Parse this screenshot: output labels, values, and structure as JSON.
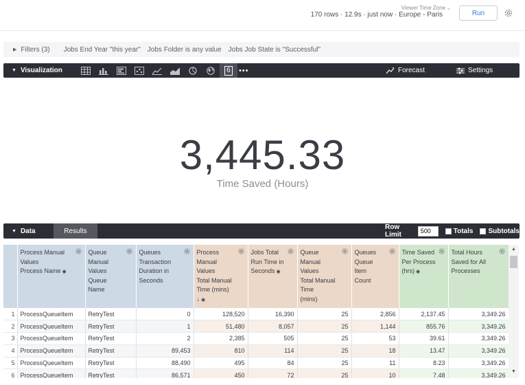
{
  "header": {
    "timezone_label": "Viewer Time Zone",
    "status": "170 rows · 12.9s · just now · Europe - Paris",
    "run_label": "Run"
  },
  "filters": {
    "label": "Filters (3)",
    "items": [
      "Jobs End Year \"this year\"",
      "Jobs Folder is any value",
      "Jobs Job State is \"Successful\""
    ]
  },
  "visualization": {
    "title": "Visualization",
    "icons": [
      "table-icon",
      "bar-chart-icon",
      "column-chart-icon",
      "scatter-icon",
      "line-icon",
      "area-icon",
      "pie-icon",
      "map-icon",
      "single-value-icon"
    ],
    "active_icon_text": "6",
    "more": "•••",
    "forecast_label": "Forecast",
    "settings_label": "Settings"
  },
  "single_value": {
    "value": "3,445.33",
    "label": "Time Saved (Hours)"
  },
  "data_panel": {
    "data_tab": "Data",
    "results_tab": "Results",
    "row_limit_label": "Row Limit",
    "row_limit_value": "500",
    "totals_label": "Totals",
    "subtotals_label": "Subtotals"
  },
  "table": {
    "columns": [
      {
        "lines": [
          "Process Manual",
          "Values",
          "Process Name"
        ],
        "type": "dim",
        "hidden_icon": true
      },
      {
        "lines": [
          "Queue",
          "Manual",
          "Values",
          "Queue",
          "Name"
        ],
        "type": "dim"
      },
      {
        "lines": [
          "Queues",
          "Transaction",
          "Duration in",
          "Seconds"
        ],
        "type": "dim"
      },
      {
        "lines": [
          "Process",
          "Manual",
          "Values",
          "Total Manual",
          "Time (mins)",
          "↓"
        ],
        "type": "meas",
        "hidden_icon": true
      },
      {
        "lines": [
          "Jobs Total",
          "Run Time in",
          "Seconds"
        ],
        "type": "meas",
        "hidden_icon": true
      },
      {
        "lines": [
          "Queue",
          "Manual",
          "Values",
          "Total Manual",
          "Time",
          "(mins)"
        ],
        "type": "meas"
      },
      {
        "lines": [
          "Queues",
          "Queue",
          "Item",
          "Count"
        ],
        "type": "meas"
      },
      {
        "lines": [
          "Time Saved",
          "Per Process",
          "(hrs)"
        ],
        "type": "calc",
        "hidden_icon": true
      },
      {
        "lines": [
          "Total Hours",
          "Saved for All",
          "Processes"
        ],
        "type": "calc"
      }
    ],
    "rows": [
      [
        "1",
        "ProcessQueueItem",
        "RetryTest",
        "0",
        "128,520",
        "16,390",
        "25",
        "2,856",
        "2,137.45",
        "3,349.26"
      ],
      [
        "2",
        "ProcessQueueItem",
        "RetryTest",
        "1",
        "51,480",
        "8,057",
        "25",
        "1,144",
        "855.76",
        "3,349.26"
      ],
      [
        "3",
        "ProcessQueueItem",
        "RetryTest",
        "2",
        "2,385",
        "505",
        "25",
        "53",
        "39.61",
        "3,349.26"
      ],
      [
        "4",
        "ProcessQueueItem",
        "RetryTest",
        "89,453",
        "810",
        "114",
        "25",
        "18",
        "13.47",
        "3,349.26"
      ],
      [
        "5",
        "ProcessQueueItem",
        "RetryTest",
        "88,490",
        "495",
        "84",
        "25",
        "11",
        "8.23",
        "3,349.26"
      ],
      [
        "6",
        "ProcessQueueItem",
        "RetryTest",
        "86,571",
        "450",
        "72",
        "25",
        "10",
        "7.48",
        "3,349.26"
      ]
    ]
  }
}
